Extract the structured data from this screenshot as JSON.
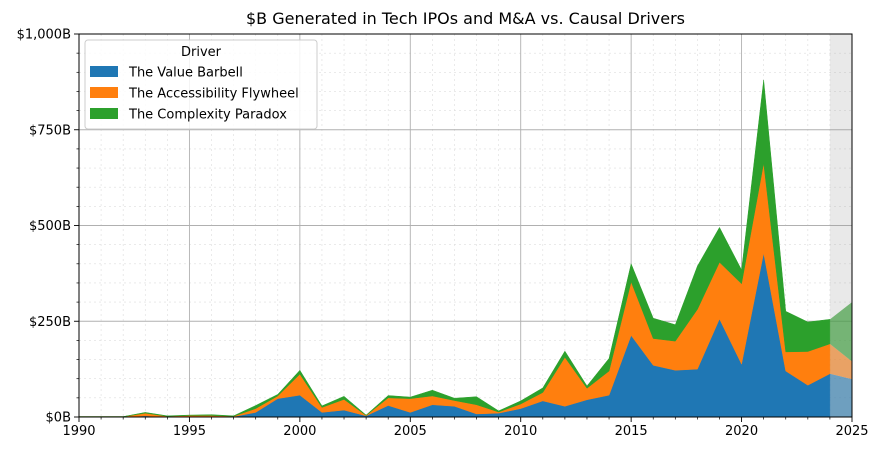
{
  "chart_data": {
    "type": "area",
    "stacked": true,
    "title": "$B Generated in Tech IPOs and M&A vs. Causal Drivers",
    "xlabel": "",
    "ylabel": "",
    "xlim": [
      1990,
      2025
    ],
    "ylim": [
      0,
      1000
    ],
    "x_ticks": [
      1990,
      1995,
      2000,
      2005,
      2010,
      2015,
      2020,
      2025
    ],
    "x_tick_labels": [
      "1990",
      "1995",
      "2000",
      "2005",
      "2010",
      "2015",
      "2020",
      "2025"
    ],
    "y_ticks": [
      0,
      250,
      500,
      750,
      1000
    ],
    "y_tick_labels": [
      "$0B",
      "$250B",
      "$500B",
      "$750B",
      "$1,000B"
    ],
    "grid": true,
    "minor_grid": true,
    "legend": {
      "title": "Driver",
      "position": "top-left"
    },
    "projected_from": 2024,
    "x": [
      1990,
      1991,
      1992,
      1993,
      1994,
      1995,
      1996,
      1997,
      1998,
      1999,
      2000,
      2001,
      2002,
      2003,
      2004,
      2005,
      2006,
      2007,
      2008,
      2009,
      2010,
      2011,
      2012,
      2013,
      2014,
      2015,
      2016,
      2017,
      2018,
      2019,
      2020,
      2021,
      2022,
      2023,
      2024,
      2025
    ],
    "series": [
      {
        "name": "The Value Barbell",
        "color": "#1f77b4",
        "values": [
          0,
          0,
          0,
          3,
          0,
          2,
          2,
          1,
          12,
          48,
          57,
          12,
          18,
          3,
          30,
          12,
          32,
          28,
          8,
          10,
          22,
          42,
          28,
          45,
          57,
          213,
          135,
          122,
          125,
          256,
          138,
          428,
          120,
          83,
          113,
          99
        ]
      },
      {
        "name": "The Accessibility Flywheel",
        "color": "#ff7f0e",
        "values": [
          1,
          1,
          1,
          7,
          2,
          2,
          2,
          1,
          10,
          7,
          55,
          13,
          28,
          1,
          20,
          36,
          23,
          15,
          24,
          3,
          12,
          22,
          128,
          30,
          63,
          140,
          70,
          76,
          156,
          148,
          210,
          235,
          50,
          88,
          78,
          46
        ]
      },
      {
        "name": "The Complexity Paradox",
        "color": "#2ca02c",
        "values": [
          0,
          0,
          0,
          2,
          1,
          1,
          2,
          1,
          8,
          4,
          10,
          4,
          8,
          1,
          6,
          4,
          15,
          6,
          21,
          3,
          8,
          12,
          16,
          6,
          33,
          47,
          53,
          43,
          113,
          91,
          36,
          217,
          106,
          77,
          64,
          155
        ]
      }
    ]
  }
}
